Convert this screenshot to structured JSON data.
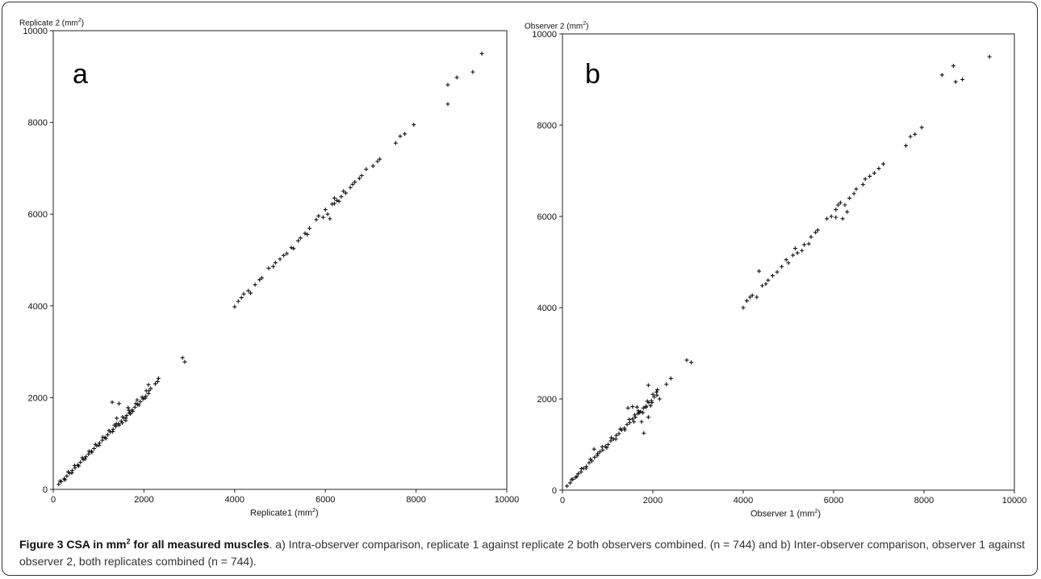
{
  "chart_data": [
    {
      "type": "scatter",
      "panel_label": "a",
      "ylabel_prefix": "Replicate 2 (mm",
      "xlabel_prefix": "Replicate1 (mm",
      "label_sup": "2",
      "label_suffix": ")",
      "xlim": [
        0,
        10000
      ],
      "ylim": [
        0,
        10000
      ],
      "xticks": [
        "0",
        "2000",
        "4000",
        "6000",
        "8000",
        "10000"
      ],
      "yticks": [
        "0",
        "2000",
        "4000",
        "6000",
        "8000",
        "10000"
      ],
      "marker": "+",
      "grid": false,
      "points": [
        [
          120,
          110
        ],
        [
          180,
          170
        ],
        [
          240,
          230
        ],
        [
          300,
          290
        ],
        [
          360,
          350
        ],
        [
          420,
          410
        ],
        [
          480,
          470
        ],
        [
          540,
          530
        ],
        [
          600,
          590
        ],
        [
          660,
          650
        ],
        [
          720,
          710
        ],
        [
          780,
          770
        ],
        [
          840,
          830
        ],
        [
          900,
          890
        ],
        [
          960,
          950
        ],
        [
          1020,
          1010
        ],
        [
          1080,
          1070
        ],
        [
          1140,
          1130
        ],
        [
          1200,
          1190
        ],
        [
          1260,
          1250
        ],
        [
          1320,
          1310
        ],
        [
          1380,
          1370
        ],
        [
          1440,
          1430
        ],
        [
          1500,
          1490
        ],
        [
          1560,
          1550
        ],
        [
          1620,
          1610
        ],
        [
          1680,
          1670
        ],
        [
          1740,
          1730
        ],
        [
          1800,
          1790
        ],
        [
          1860,
          1850
        ],
        [
          1920,
          1910
        ],
        [
          1980,
          1970
        ],
        [
          2040,
          2030
        ],
        [
          2100,
          2090
        ],
        [
          150,
          180
        ],
        [
          260,
          210
        ],
        [
          330,
          380
        ],
        [
          410,
          360
        ],
        [
          470,
          520
        ],
        [
          560,
          510
        ],
        [
          640,
          690
        ],
        [
          700,
          660
        ],
        [
          790,
          830
        ],
        [
          850,
          810
        ],
        [
          930,
          980
        ],
        [
          1010,
          960
        ],
        [
          1090,
          1140
        ],
        [
          1160,
          1110
        ],
        [
          1230,
          1280
        ],
        [
          1310,
          1260
        ],
        [
          1390,
          1430
        ],
        [
          1450,
          1400
        ],
        [
          1530,
          1580
        ],
        [
          1600,
          1550
        ],
        [
          1670,
          1720
        ],
        [
          1750,
          1700
        ],
        [
          1820,
          1870
        ],
        [
          1890,
          1840
        ],
        [
          1960,
          2010
        ],
        [
          2030,
          1990
        ],
        [
          2110,
          2150
        ],
        [
          1300,
          1900
        ],
        [
          1450,
          1870
        ],
        [
          1600,
          1500
        ],
        [
          1520,
          1450
        ],
        [
          1700,
          1650
        ],
        [
          1650,
          1780
        ],
        [
          1400,
          1550
        ],
        [
          1850,
          1950
        ],
        [
          2100,
          2280
        ],
        [
          2050,
          2150
        ],
        [
          2300,
          2350
        ],
        [
          2320,
          2420
        ],
        [
          2250,
          2300
        ],
        [
          2150,
          2200
        ],
        [
          1350,
          1400
        ],
        [
          2850,
          2870
        ],
        [
          2900,
          2780
        ],
        [
          4000,
          3980
        ],
        [
          4080,
          4100
        ],
        [
          4150,
          4180
        ],
        [
          4200,
          4260
        ],
        [
          4300,
          4330
        ],
        [
          4350,
          4280
        ],
        [
          4450,
          4460
        ],
        [
          4550,
          4570
        ],
        [
          4600,
          4610
        ],
        [
          4750,
          4820
        ],
        [
          4850,
          4860
        ],
        [
          4900,
          4940
        ],
        [
          5000,
          5020
        ],
        [
          5080,
          5100
        ],
        [
          5150,
          5140
        ],
        [
          5250,
          5270
        ],
        [
          5300,
          5250
        ],
        [
          5400,
          5420
        ],
        [
          5450,
          5480
        ],
        [
          5550,
          5580
        ],
        [
          5600,
          5560
        ],
        [
          5650,
          5690
        ],
        [
          5800,
          5880
        ],
        [
          5850,
          5960
        ],
        [
          5950,
          5930
        ],
        [
          6000,
          6100
        ],
        [
          6050,
          6000
        ],
        [
          6150,
          6220
        ],
        [
          6200,
          6230
        ],
        [
          6250,
          6300
        ],
        [
          6300,
          6280
        ],
        [
          6350,
          6380
        ],
        [
          6450,
          6460
        ],
        [
          6550,
          6580
        ],
        [
          6650,
          6700
        ],
        [
          6750,
          6780
        ],
        [
          6800,
          6840
        ],
        [
          6900,
          6980
        ],
        [
          7050,
          7050
        ],
        [
          7150,
          7150
        ],
        [
          7200,
          7200
        ],
        [
          6100,
          5900
        ],
        [
          6200,
          6350
        ],
        [
          6400,
          6500
        ],
        [
          6600,
          6650
        ],
        [
          7550,
          7550
        ],
        [
          7650,
          7700
        ],
        [
          7750,
          7750
        ],
        [
          7950,
          7950
        ],
        [
          8700,
          8400
        ],
        [
          8700,
          8820
        ],
        [
          8900,
          8980
        ],
        [
          9250,
          9100
        ],
        [
          9450,
          9500
        ]
      ]
    },
    {
      "type": "scatter",
      "panel_label": "b",
      "ylabel_prefix": "Observer 2 (mm",
      "xlabel_prefix": "Observer 1 (mm",
      "label_sup": "2",
      "label_suffix": ")",
      "xlim": [
        0,
        10000
      ],
      "ylim": [
        0,
        10000
      ],
      "xticks": [
        "0",
        "2000",
        "4000",
        "6000",
        "8000",
        "10000"
      ],
      "yticks": [
        "0",
        "2000",
        "4000",
        "6000",
        "8000",
        "10000"
      ],
      "marker": "+",
      "grid": false,
      "points": [
        [
          100,
          90
        ],
        [
          170,
          160
        ],
        [
          230,
          240
        ],
        [
          290,
          280
        ],
        [
          350,
          360
        ],
        [
          410,
          400
        ],
        [
          470,
          480
        ],
        [
          530,
          520
        ],
        [
          590,
          600
        ],
        [
          650,
          640
        ],
        [
          710,
          720
        ],
        [
          770,
          760
        ],
        [
          830,
          840
        ],
        [
          890,
          880
        ],
        [
          950,
          960
        ],
        [
          1010,
          1000
        ],
        [
          1070,
          1080
        ],
        [
          1130,
          1120
        ],
        [
          1190,
          1200
        ],
        [
          1250,
          1240
        ],
        [
          1310,
          1320
        ],
        [
          1370,
          1360
        ],
        [
          1430,
          1440
        ],
        [
          1490,
          1480
        ],
        [
          1550,
          1560
        ],
        [
          1610,
          1600
        ],
        [
          1670,
          1680
        ],
        [
          1730,
          1720
        ],
        [
          1790,
          1800
        ],
        [
          1850,
          1840
        ],
        [
          1910,
          1920
        ],
        [
          1970,
          1960
        ],
        [
          2030,
          2040
        ],
        [
          2090,
          2080
        ],
        [
          200,
          230
        ],
        [
          320,
          300
        ],
        [
          420,
          470
        ],
        [
          520,
          480
        ],
        [
          620,
          680
        ],
        [
          700,
          900
        ],
        [
          780,
          800
        ],
        [
          880,
          950
        ],
        [
          980,
          930
        ],
        [
          1080,
          1150
        ],
        [
          1180,
          1120
        ],
        [
          1280,
          1340
        ],
        [
          1380,
          1320
        ],
        [
          1480,
          1550
        ],
        [
          1580,
          1500
        ],
        [
          1680,
          1740
        ],
        [
          1780,
          1700
        ],
        [
          1880,
          1950
        ],
        [
          1980,
          1920
        ],
        [
          2080,
          2150
        ],
        [
          1450,
          1800
        ],
        [
          1550,
          1830
        ],
        [
          1650,
          1820
        ],
        [
          1700,
          1700
        ],
        [
          1750,
          1500
        ],
        [
          1800,
          1250
        ],
        [
          1850,
          1820
        ],
        [
          1900,
          1600
        ],
        [
          1950,
          1850
        ],
        [
          2000,
          2100
        ],
        [
          2100,
          2200
        ],
        [
          2150,
          2000
        ],
        [
          1900,
          2300
        ],
        [
          2300,
          2320
        ],
        [
          2400,
          2450
        ],
        [
          1600,
          1650
        ],
        [
          2750,
          2850
        ],
        [
          2850,
          2800
        ],
        [
          4000,
          4000
        ],
        [
          4080,
          4150
        ],
        [
          4150,
          4230
        ],
        [
          4200,
          4270
        ],
        [
          4300,
          4230
        ],
        [
          4350,
          4800
        ],
        [
          4420,
          4480
        ],
        [
          4500,
          4520
        ],
        [
          4550,
          4600
        ],
        [
          4650,
          4700
        ],
        [
          4750,
          4780
        ],
        [
          4850,
          4900
        ],
        [
          4950,
          5050
        ],
        [
          5000,
          4980
        ],
        [
          5100,
          5150
        ],
        [
          5150,
          5300
        ],
        [
          5200,
          5200
        ],
        [
          5300,
          5250
        ],
        [
          5350,
          5380
        ],
        [
          5450,
          5400
        ],
        [
          5500,
          5550
        ],
        [
          5600,
          5650
        ],
        [
          5650,
          5700
        ],
        [
          5850,
          5950
        ],
        [
          5950,
          6000
        ],
        [
          6050,
          5980
        ],
        [
          6100,
          6250
        ],
        [
          6150,
          6300
        ],
        [
          6250,
          6250
        ],
        [
          6300,
          6100
        ],
        [
          6350,
          6400
        ],
        [
          6500,
          6600
        ],
        [
          6650,
          6700
        ],
        [
          6700,
          6820
        ],
        [
          6800,
          6880
        ],
        [
          6900,
          6950
        ],
        [
          7000,
          7050
        ],
        [
          7100,
          7150
        ],
        [
          6200,
          5950
        ],
        [
          6450,
          6500
        ],
        [
          6050,
          6150
        ],
        [
          7600,
          7550
        ],
        [
          7700,
          7750
        ],
        [
          7800,
          7800
        ],
        [
          7950,
          7950
        ],
        [
          8400,
          9100
        ],
        [
          8650,
          9300
        ],
        [
          8700,
          8950
        ],
        [
          8850,
          9000
        ],
        [
          9450,
          9500
        ]
      ]
    }
  ],
  "caption": {
    "title_main": "Figure 3 CSA in mm",
    "title_sup": "2",
    "title_end": " for all measured muscles",
    "body": ". a) Intra-observer comparison, replicate 1 against replicate 2 both observers combined. (n = 744) and b) Inter-observer comparison, observer 1 against observer 2, both replicates combined (n = 744)."
  }
}
